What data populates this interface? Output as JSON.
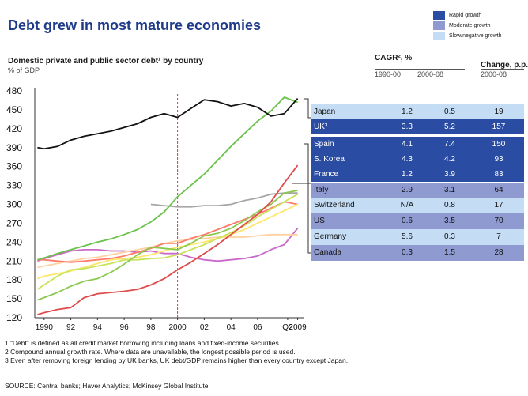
{
  "title": "Debt grew in most mature economies",
  "legend": [
    {
      "label": "Rapid growth",
      "color": "#2a4da3"
    },
    {
      "label": "Moderate growth",
      "color": "#8f9ad0"
    },
    {
      "label": "Slow/negative growth",
      "color": "#c4ddf5"
    }
  ],
  "subtitle": "Domestic private and public sector debt¹ by country",
  "unit_label": "% of GDP",
  "table": {
    "cagr_header": "CAGR², %",
    "change_header": "Change, p.p.",
    "col_1990": "1990-00",
    "col_2000": "2000-08",
    "col_change": "2000-08",
    "rows": [
      {
        "country": "Japan",
        "cagr_90_00": "1.2",
        "cagr_00_08": "0.5",
        "change": "19",
        "group": "slow"
      },
      {
        "country": "UK³",
        "cagr_90_00": "3.3",
        "cagr_00_08": "5.2",
        "change": "157",
        "group": "rapid"
      },
      {
        "country": "Spain",
        "cagr_90_00": "4.1",
        "cagr_00_08": "7.4",
        "change": "150",
        "group": "rapid"
      },
      {
        "country": "S. Korea",
        "cagr_90_00": "4.3",
        "cagr_00_08": "4.2",
        "change": "93",
        "group": "rapid"
      },
      {
        "country": "France",
        "cagr_90_00": "1.2",
        "cagr_00_08": "3.9",
        "change": "83",
        "group": "rapid"
      },
      {
        "country": "Italy",
        "cagr_90_00": "2.9",
        "cagr_00_08": "3.1",
        "change": "64",
        "group": "moderate"
      },
      {
        "country": "Switzerland",
        "cagr_90_00": "N/A",
        "cagr_00_08": "0.8",
        "change": "17",
        "group": "slow"
      },
      {
        "country": "US",
        "cagr_90_00": "0.6",
        "cagr_00_08": "3.5",
        "change": "70",
        "group": "moderate"
      },
      {
        "country": "Germany",
        "cagr_90_00": "5.6",
        "cagr_00_08": "0.3",
        "change": "7",
        "group": "slow"
      },
      {
        "country": "Canada",
        "cagr_90_00": "0.3",
        "cagr_00_08": "1.5",
        "change": "28",
        "group": "moderate"
      }
    ]
  },
  "chart_data": {
    "type": "line",
    "xlabel": "",
    "ylabel": "% of GDP",
    "ylim": [
      120,
      480
    ],
    "yticks": [
      120,
      150,
      180,
      210,
      240,
      270,
      300,
      330,
      360,
      390,
      420,
      450,
      480
    ],
    "xlim": [
      1989.3,
      2009.5
    ],
    "xtick_values": [
      1990,
      1992,
      1994,
      1996,
      1998,
      2000,
      2002,
      2004,
      2006,
      2008.25,
      2009
    ],
    "xtick_labels": [
      "1990",
      "92",
      "94",
      "96",
      "98",
      "2000",
      "02",
      "04",
      "06",
      "Q2",
      "2009"
    ],
    "reference_line_x": 2000,
    "grid": false,
    "series": [
      {
        "name": "Japan",
        "color": "#111111",
        "x": [
          1989.5,
          1990,
          1991,
          1992,
          1993,
          1994,
          1995,
          1996,
          1997,
          1998,
          1999,
          2000,
          2001,
          2002,
          2003,
          2004,
          2005,
          2006,
          2007,
          2008,
          2009
        ],
        "y": [
          390,
          388,
          392,
          402,
          408,
          412,
          416,
          422,
          428,
          438,
          444,
          438,
          452,
          466,
          463,
          456,
          460,
          454,
          440,
          444,
          468
        ]
      },
      {
        "name": "UK³",
        "color": "#6ac24a",
        "x": [
          1989.5,
          1990,
          1991,
          1992,
          1993,
          1994,
          1995,
          1996,
          1997,
          1998,
          1999,
          2000,
          2001,
          2002,
          2003,
          2004,
          2005,
          2006,
          2007,
          2008,
          2009
        ],
        "y": [
          212,
          215,
          222,
          228,
          234,
          240,
          245,
          252,
          260,
          272,
          288,
          312,
          330,
          348,
          370,
          392,
          412,
          432,
          448,
          470,
          462
        ]
      },
      {
        "name": "Spain",
        "color": "#e04b4b",
        "x": [
          1989.5,
          1990,
          1991,
          1992,
          1993,
          1994,
          1995,
          1996,
          1997,
          1998,
          1999,
          2000,
          2001,
          2002,
          2003,
          2004,
          2005,
          2006,
          2007,
          2008,
          2009
        ],
        "y": [
          125,
          128,
          133,
          136,
          152,
          158,
          160,
          162,
          165,
          172,
          182,
          196,
          208,
          222,
          236,
          252,
          268,
          284,
          304,
          334,
          362
        ]
      },
      {
        "name": "S. Korea",
        "color": "#8bc94e",
        "x": [
          1989.5,
          1990,
          1991,
          1992,
          1993,
          1994,
          1995,
          1996,
          1997,
          1998,
          1999,
          2000,
          2001,
          2002,
          2003,
          2004,
          2005,
          2006,
          2007,
          2008,
          2009
        ],
        "y": [
          148,
          152,
          160,
          170,
          178,
          182,
          192,
          205,
          220,
          232,
          230,
          228,
          238,
          250,
          254,
          262,
          274,
          288,
          300,
          318,
          322
        ]
      },
      {
        "name": "France",
        "color": "#c8e35a",
        "x": [
          1989.5,
          1990,
          1991,
          1992,
          1993,
          1994,
          1995,
          1996,
          1997,
          1998,
          1999,
          2000,
          2001,
          2002,
          2003,
          2004,
          2005,
          2006,
          2007,
          2008,
          2009
        ],
        "y": [
          165,
          172,
          186,
          196,
          198,
          202,
          206,
          212,
          212,
          214,
          215,
          220,
          228,
          236,
          246,
          255,
          266,
          280,
          292,
          304,
          316
        ]
      },
      {
        "name": "Italy",
        "color": "#ffe66a",
        "x": [
          1989.5,
          1990,
          1991,
          1992,
          1993,
          1994,
          1995,
          1996,
          1997,
          1998,
          1999,
          2000,
          2001,
          2002,
          2003,
          2004,
          2005,
          2006,
          2007,
          2008,
          2009
        ],
        "y": [
          182,
          186,
          190,
          194,
          200,
          206,
          212,
          214,
          216,
          220,
          226,
          232,
          236,
          240,
          246,
          252,
          260,
          270,
          280,
          290,
          300
        ]
      },
      {
        "name": "Switzerland",
        "color": "#a6a6a6",
        "x": [
          1998,
          1999,
          2000,
          2001,
          2002,
          2003,
          2004,
          2005,
          2006,
          2007,
          2008,
          2009
        ],
        "y": [
          300,
          298,
          296,
          296,
          298,
          298,
          300,
          306,
          310,
          316,
          318,
          318
        ]
      },
      {
        "name": "US",
        "color": "#ff7a6a",
        "x": [
          1989.5,
          1990,
          1991,
          1992,
          1993,
          1994,
          1995,
          1996,
          1997,
          1998,
          1999,
          2000,
          2001,
          2002,
          2003,
          2004,
          2005,
          2006,
          2007,
          2008,
          2009
        ],
        "y": [
          212,
          212,
          210,
          208,
          210,
          212,
          214,
          218,
          224,
          230,
          238,
          238,
          246,
          252,
          260,
          268,
          276,
          284,
          294,
          304,
          300
        ]
      },
      {
        "name": "Germany",
        "color": "#ffd0a0",
        "x": [
          1989.5,
          1990,
          1991,
          1992,
          1993,
          1994,
          1995,
          1996,
          1997,
          1998,
          1999,
          2000,
          2001,
          2002,
          2003,
          2004,
          2005,
          2006,
          2007,
          2008,
          2009
        ],
        "y": [
          200,
          202,
          206,
          210,
          214,
          216,
          220,
          224,
          228,
          232,
          238,
          242,
          244,
          246,
          248,
          248,
          248,
          250,
          252,
          252,
          252
        ]
      },
      {
        "name": "Canada",
        "color": "#c969c9",
        "x": [
          1989.5,
          1990,
          1991,
          1992,
          1993,
          1994,
          1995,
          1996,
          1997,
          1998,
          1999,
          2000,
          2001,
          2002,
          2003,
          2004,
          2005,
          2006,
          2007,
          2008,
          2009
        ],
        "y": [
          210,
          214,
          220,
          226,
          228,
          228,
          226,
          226,
          224,
          226,
          222,
          222,
          216,
          212,
          210,
          212,
          214,
          218,
          228,
          236,
          262
        ]
      }
    ]
  },
  "footnotes": [
    "1 “Debt” is defined as all credit market borrowing including loans and fixed-income securities.",
    "2 Compound annual growth rate. Where data are unavailable, the longest possible period is used.",
    "3 Even after removing foreign lending by UK banks, UK debt/GDP remains higher than every country except Japan."
  ],
  "source": "SOURCE: Central banks; Haver Analytics; McKinsey Global Institute"
}
